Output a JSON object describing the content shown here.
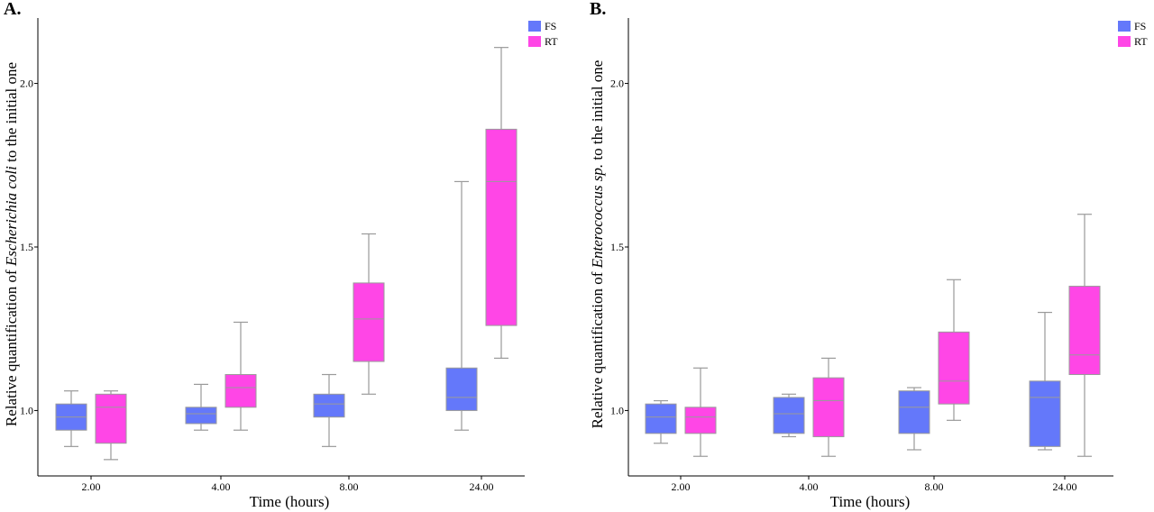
{
  "colors": {
    "FS": "#6478fa",
    "RT": "#ff46e6",
    "whisker": "#9a9a9a",
    "axis": "#000000"
  },
  "chart_data": [
    {
      "type": "box",
      "panel_label": "A.",
      "xlabel": "Time (hours)",
      "ylabel_parts": [
        "Relative quantification of ",
        "Escherichia coli",
        " to the initial one"
      ],
      "categories": [
        "2.00",
        "4.00",
        "8.00",
        "24.00"
      ],
      "y_ticks": [
        "1.0",
        "1.5",
        "2.0"
      ],
      "y_tick_values": [
        1.0,
        1.5,
        2.0
      ],
      "ylim": [
        0.8,
        2.2
      ],
      "legend": [
        "FS",
        "RT"
      ],
      "legend_position": "top-right",
      "series": [
        {
          "name": "FS",
          "boxes": [
            {
              "min": 0.89,
              "q1": 0.94,
              "median": 0.98,
              "q3": 1.02,
              "max": 1.06
            },
            {
              "min": 0.94,
              "q1": 0.96,
              "median": 0.99,
              "q3": 1.01,
              "max": 1.08
            },
            {
              "min": 0.89,
              "q1": 0.98,
              "median": 1.02,
              "q3": 1.05,
              "max": 1.11
            },
            {
              "min": 0.94,
              "q1": 1.0,
              "median": 1.04,
              "q3": 1.13,
              "max": 1.7
            }
          ]
        },
        {
          "name": "RT",
          "boxes": [
            {
              "min": 0.85,
              "q1": 0.9,
              "median": 1.01,
              "q3": 1.05,
              "max": 1.06
            },
            {
              "min": 0.94,
              "q1": 1.01,
              "median": 1.07,
              "q3": 1.11,
              "max": 1.27
            },
            {
              "min": 1.05,
              "q1": 1.15,
              "median": 1.28,
              "q3": 1.39,
              "max": 1.54
            },
            {
              "min": 1.16,
              "q1": 1.26,
              "median": 1.7,
              "q3": 1.86,
              "max": 2.11
            }
          ]
        }
      ]
    },
    {
      "type": "box",
      "panel_label": "B.",
      "xlabel": "Time (hours)",
      "ylabel_parts": [
        "Relative quantification of ",
        "Enterococcus sp.",
        " to the initial one"
      ],
      "categories": [
        "2.00",
        "4.00",
        "8.00",
        "24.00"
      ],
      "y_ticks": [
        "1.0",
        "1.5",
        "2.0"
      ],
      "y_tick_values": [
        1.0,
        1.5,
        2.0
      ],
      "ylim": [
        0.8,
        2.2
      ],
      "legend": [
        "FS",
        "RT"
      ],
      "legend_position": "top-right",
      "series": [
        {
          "name": "FS",
          "boxes": [
            {
              "min": 0.9,
              "q1": 0.93,
              "median": 0.98,
              "q3": 1.02,
              "max": 1.03
            },
            {
              "min": 0.92,
              "q1": 0.93,
              "median": 0.99,
              "q3": 1.04,
              "max": 1.05
            },
            {
              "min": 0.88,
              "q1": 0.93,
              "median": 1.01,
              "q3": 1.06,
              "max": 1.07
            },
            {
              "min": 0.88,
              "q1": 0.89,
              "median": 1.04,
              "q3": 1.09,
              "max": 1.3
            }
          ]
        },
        {
          "name": "RT",
          "boxes": [
            {
              "min": 0.86,
              "q1": 0.93,
              "median": 0.98,
              "q3": 1.01,
              "max": 1.13
            },
            {
              "min": 0.86,
              "q1": 0.92,
              "median": 1.03,
              "q3": 1.1,
              "max": 1.16
            },
            {
              "min": 0.97,
              "q1": 1.02,
              "median": 1.09,
              "q3": 1.24,
              "max": 1.4
            },
            {
              "min": 0.86,
              "q1": 1.11,
              "median": 1.17,
              "q3": 1.38,
              "max": 1.6
            }
          ]
        }
      ]
    }
  ]
}
